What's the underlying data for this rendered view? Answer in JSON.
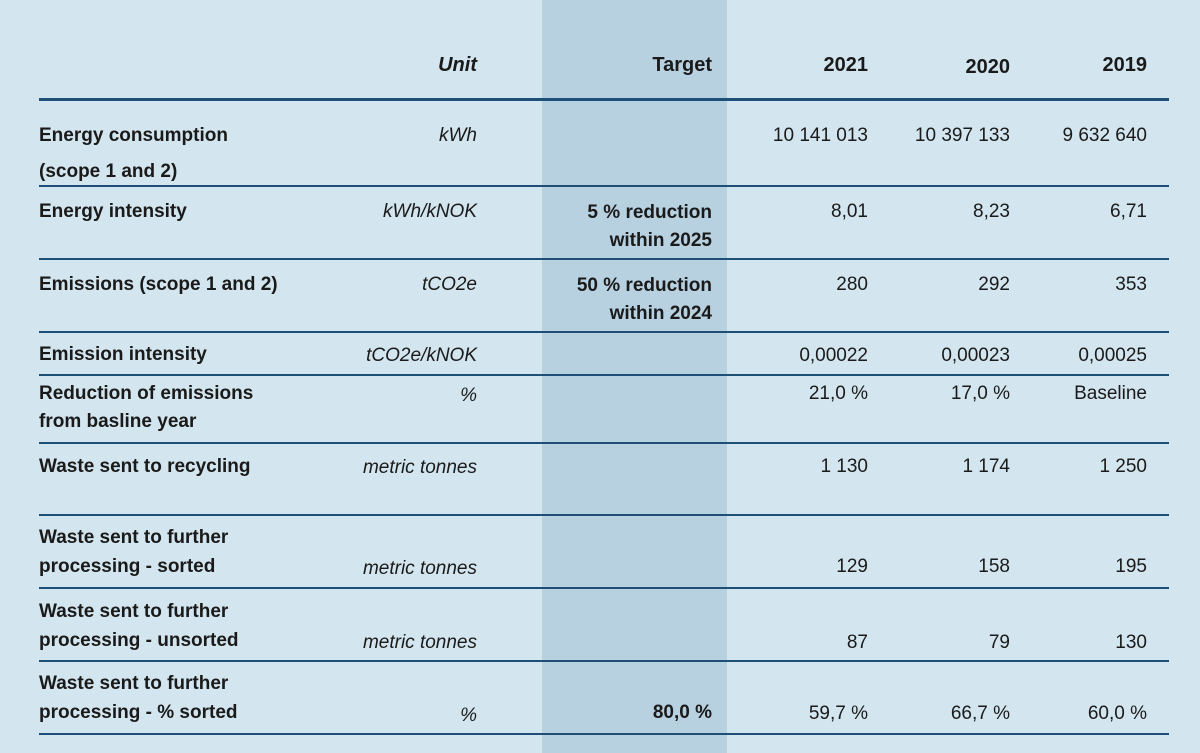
{
  "header": {
    "unit": "Unit",
    "target": "Target",
    "y2021": "2021",
    "y2020": "2020",
    "y2019": "2019"
  },
  "rows": [
    {
      "label": [
        "Energy consumption",
        "(scope 1 and 2)"
      ],
      "unit": "kWh",
      "target": [],
      "v2021": "10 141 013",
      "v2020": "10 397 133",
      "v2019": "9 632 640"
    },
    {
      "label": [
        "Energy intensity"
      ],
      "unit": "kWh/kNOK",
      "target": [
        "5 % reduction",
        "within 2025"
      ],
      "v2021": "8,01",
      "v2020": "8,23",
      "v2019": "6,71"
    },
    {
      "label": [
        "Emissions (scope 1 and 2)"
      ],
      "unit": "tCO2e",
      "target": [
        "50 % reduction",
        "within 2024"
      ],
      "v2021": "280",
      "v2020": "292",
      "v2019": "353"
    },
    {
      "label": [
        "Emission intensity"
      ],
      "unit": "tCO2e/kNOK",
      "target": [],
      "v2021": "0,00022",
      "v2020": "0,00023",
      "v2019": "0,00025"
    },
    {
      "label": [
        "Reduction of emissions",
        "from basline year"
      ],
      "unit": "%",
      "target": [],
      "v2021": "21,0 %",
      "v2020": "17,0 %",
      "v2019": "Baseline"
    },
    {
      "label": [
        "Waste sent to recycling"
      ],
      "unit": "metric tonnes",
      "target": [],
      "v2021": "1 130",
      "v2020": "1 174",
      "v2019": "1 250"
    },
    {
      "label": [
        "Waste sent to further",
        "processing - sorted"
      ],
      "unit": "metric tonnes",
      "target": [],
      "v2021": "129",
      "v2020": "158",
      "v2019": "195"
    },
    {
      "label": [
        "Waste sent to further",
        "processing - unsorted"
      ],
      "unit": "metric tonnes",
      "target": [],
      "v2021": "87",
      "v2020": "79",
      "v2019": "130"
    },
    {
      "label": [
        "Waste sent to further",
        "processing - % sorted"
      ],
      "unit": "%",
      "target": [
        "80,0 %"
      ],
      "v2021": "59,7 %",
      "v2020": "66,7 %",
      "v2019": "60,0 %"
    }
  ]
}
